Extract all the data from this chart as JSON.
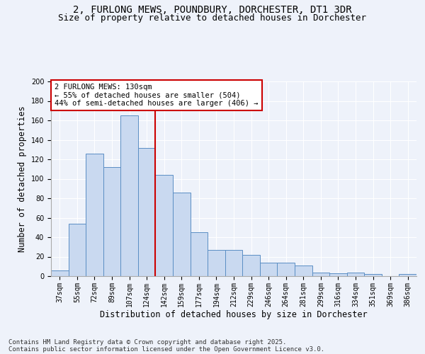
{
  "title_line1": "2, FURLONG MEWS, POUNDBURY, DORCHESTER, DT1 3DR",
  "title_line2": "Size of property relative to detached houses in Dorchester",
  "xlabel": "Distribution of detached houses by size in Dorchester",
  "ylabel": "Number of detached properties",
  "categories": [
    "37sqm",
    "55sqm",
    "72sqm",
    "89sqm",
    "107sqm",
    "124sqm",
    "142sqm",
    "159sqm",
    "177sqm",
    "194sqm",
    "212sqm",
    "229sqm",
    "246sqm",
    "264sqm",
    "281sqm",
    "299sqm",
    "316sqm",
    "334sqm",
    "351sqm",
    "369sqm",
    "386sqm"
  ],
  "values": [
    6,
    54,
    126,
    112,
    165,
    132,
    104,
    86,
    45,
    27,
    27,
    22,
    14,
    14,
    11,
    4,
    3,
    4,
    2,
    0,
    2
  ],
  "bar_color": "#c9d9f0",
  "bar_edge_color": "#5b8ec4",
  "vline_x": 5.5,
  "vline_color": "#cc0000",
  "annotation_text": "2 FURLONG MEWS: 130sqm\n← 55% of detached houses are smaller (504)\n44% of semi-detached houses are larger (406) →",
  "annotation_box_color": "#ffffff",
  "annotation_border_color": "#cc0000",
  "ylim": [
    0,
    200
  ],
  "yticks": [
    0,
    20,
    40,
    60,
    80,
    100,
    120,
    140,
    160,
    180,
    200
  ],
  "bg_color": "#eef2fa",
  "plot_bg_color": "#eef2fa",
  "footer_line1": "Contains HM Land Registry data © Crown copyright and database right 2025.",
  "footer_line2": "Contains public sector information licensed under the Open Government Licence v3.0.",
  "title_fontsize": 10,
  "subtitle_fontsize": 9,
  "axis_label_fontsize": 8.5,
  "tick_fontsize": 7,
  "annotation_fontsize": 7.5,
  "footer_fontsize": 6.5
}
